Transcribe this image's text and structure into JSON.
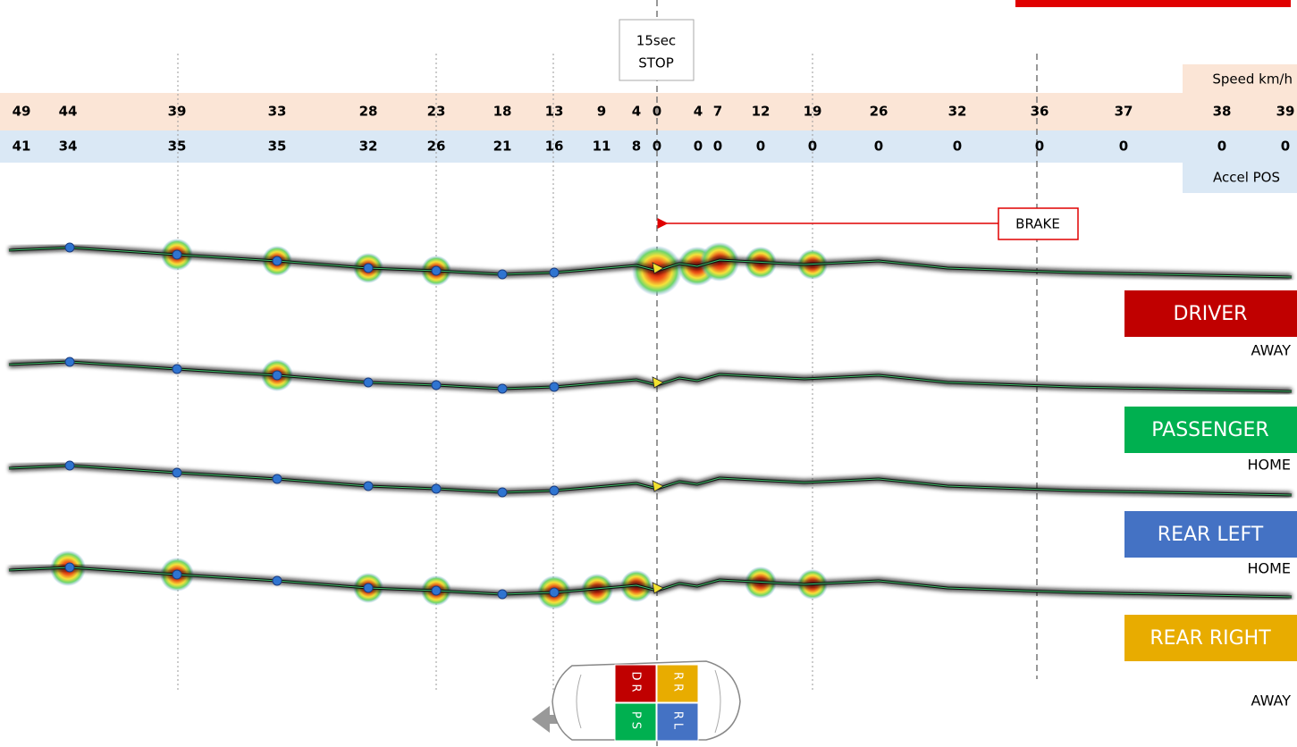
{
  "speed": {
    "label": "Speed km/h",
    "values": [
      49,
      44,
      39,
      33,
      28,
      23,
      18,
      13,
      9,
      4,
      0,
      4,
      7,
      12,
      19,
      26,
      32,
      36,
      37,
      38,
      39
    ]
  },
  "accel": {
    "label": "Accel POS",
    "values": [
      41,
      34,
      35,
      35,
      32,
      26,
      21,
      16,
      11,
      8,
      0,
      0,
      0,
      0,
      0,
      0,
      0,
      0,
      0,
      0,
      0
    ]
  },
  "stop": {
    "line1": "15sec",
    "line2": "STOP"
  },
  "brake": "BRAKE",
  "occupants": [
    {
      "seat": "DRIVER",
      "status": "AWAY"
    },
    {
      "seat": "PASSENGER",
      "status": "HOME"
    },
    {
      "seat": "REAR LEFT",
      "status": "HOME"
    },
    {
      "seat": "REAR RIGHT",
      "status": "AWAY"
    }
  ],
  "seats": [
    "DR",
    "RR",
    "PS",
    "RL"
  ]
}
